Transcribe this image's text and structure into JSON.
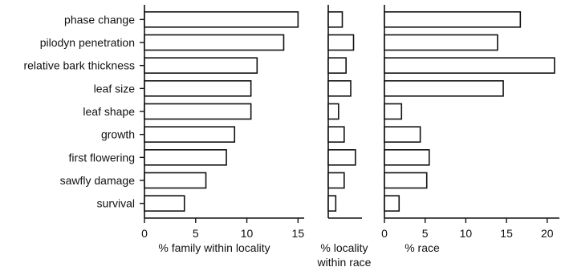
{
  "chart_data": [
    {
      "type": "bar",
      "orientation": "horizontal",
      "categories": [
        "phase change",
        "pilodyn penetration",
        "relative bark thickness",
        "leaf size",
        "leaf shape",
        "growth",
        "first flowering",
        "sawfly damage",
        "survival"
      ],
      "values": [
        15.0,
        13.6,
        11.0,
        10.4,
        10.4,
        8.8,
        8.0,
        6.0,
        3.9
      ],
      "xlabel": "% family within locality",
      "xlim": [
        0,
        15.6
      ],
      "xticks": [
        "0",
        "5",
        "10",
        "15"
      ],
      "xtick_values": [
        0,
        5,
        10,
        15
      ],
      "grid": false
    },
    {
      "type": "bar",
      "orientation": "horizontal",
      "categories": [
        "phase change",
        "pilodyn penetration",
        "relative bark thickness",
        "leaf size",
        "leaf shape",
        "growth",
        "first flowering",
        "sawfly damage",
        "survival"
      ],
      "values": [
        1.5,
        2.7,
        1.9,
        2.4,
        1.1,
        1.7,
        2.9,
        1.7,
        0.8
      ],
      "xlabel": "% locality\nwithin race",
      "xlim": [
        0,
        3.6
      ],
      "xticks": [],
      "grid": false
    },
    {
      "type": "bar",
      "orientation": "horizontal",
      "categories": [
        "phase change",
        "pilodyn penetration",
        "relative bark thickness",
        "leaf size",
        "leaf shape",
        "growth",
        "first flowering",
        "sawfly damage",
        "survival"
      ],
      "values": [
        16.7,
        13.9,
        20.9,
        14.6,
        2.1,
        4.4,
        5.5,
        5.2,
        1.8
      ],
      "xlabel": "% race",
      "xlim": [
        0,
        21.5
      ],
      "xticks": [
        "0",
        "5",
        "10",
        "15",
        "20"
      ],
      "xtick_values": [
        0,
        5,
        10,
        15,
        20
      ],
      "grid": false
    }
  ]
}
